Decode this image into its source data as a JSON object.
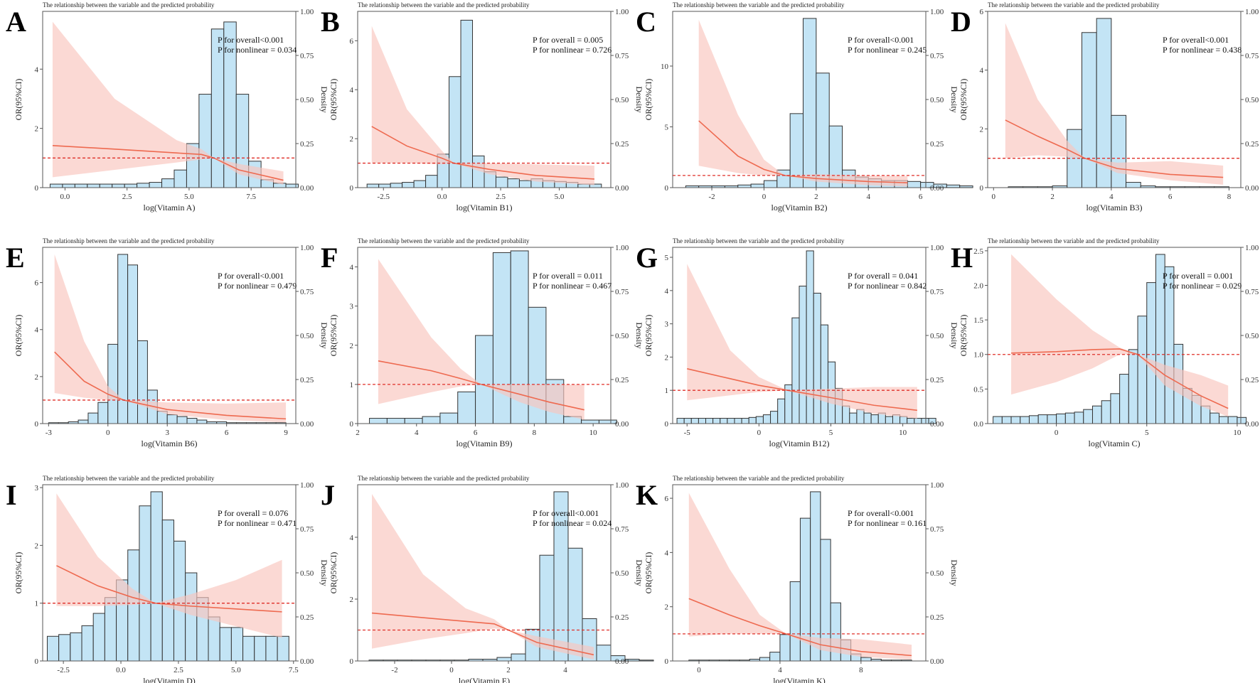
{
  "colors": {
    "bar_fill": "#c3e4f5",
    "bar_stroke": "#333333",
    "curve": "#ee6a50",
    "ci": "#f9c4bd",
    "ref_line": "#e0302a"
  },
  "common": {
    "title": "The relationship between the variable and the predicted probability",
    "ylabel": "OR(95%CI)",
    "y2label": "Density",
    "y2ticks": [
      "0.00",
      "0.25",
      "0.50",
      "0.75",
      "1.00"
    ]
  },
  "chart_data": [
    {
      "type": "line+histogram",
      "label": "A",
      "xlabel": "log(Vitamin A)",
      "xlim": [
        -0.9,
        9.3
      ],
      "xticks": [
        0,
        2.5,
        5,
        7.5
      ],
      "xtick_labels": [
        "0.0",
        "2.5",
        "5.0",
        "7.5"
      ],
      "ylim": [
        0,
        5.95
      ],
      "yticks": [
        0,
        2,
        4
      ],
      "p_overall": "P for overall<0.001",
      "p_nonlinear": "P for nonlinear = 0.034",
      "hist": {
        "start": -0.6,
        "width": 0.5,
        "density": [
          0.02,
          0.02,
          0.02,
          0.02,
          0.02,
          0.02,
          0.02,
          0.025,
          0.03,
          0.05,
          0.1,
          0.25,
          0.53,
          0.9,
          0.94,
          0.53,
          0.15,
          0.045,
          0.025,
          0.02
        ]
      },
      "curve": [
        [
          -0.5,
          1.42,
          0.35,
          5.6
        ],
        [
          2,
          1.3,
          0.6,
          3.0
        ],
        [
          4.5,
          1.17,
          0.85,
          1.6
        ],
        [
          5.5,
          1.12,
          0.95,
          1.3
        ],
        [
          6.0,
          1.0,
          1.0,
          1.0
        ],
        [
          7,
          0.6,
          0.45,
          0.8
        ],
        [
          8.8,
          0.25,
          0.1,
          0.55
        ]
      ]
    },
    {
      "type": "line+histogram",
      "label": "B",
      "xlabel": "log(Vitamin B1)",
      "xlim": [
        -3.6,
        7.2
      ],
      "xticks": [
        -2.5,
        0,
        2.5,
        5
      ],
      "xtick_labels": [
        "-2.5",
        "0.0",
        "2.5",
        "5.0"
      ],
      "ylim": [
        0,
        7.2
      ],
      "yticks": [
        0,
        2,
        4,
        6
      ],
      "p_overall": "P for overall = 0.005",
      "p_nonlinear": "P for nonlinear = 0.726",
      "hist": {
        "start": -3.2,
        "width": 0.5,
        "density": [
          0.02,
          0.02,
          0.025,
          0.03,
          0.04,
          0.07,
          0.19,
          0.63,
          0.95,
          0.18,
          0.09,
          0.06,
          0.05,
          0.04,
          0.05,
          0.04,
          0.035,
          0.03,
          0.02,
          0.02
        ]
      },
      "curve": [
        [
          -3,
          2.5,
          1.0,
          6.6
        ],
        [
          -1.5,
          1.7,
          1.0,
          3.2
        ],
        [
          0,
          1.2,
          0.95,
          1.5
        ],
        [
          0.5,
          1.0,
          1.0,
          1.0
        ],
        [
          2,
          0.75,
          0.55,
          1.0
        ],
        [
          4,
          0.5,
          0.25,
          0.95
        ],
        [
          6.5,
          0.35,
          0.1,
          0.9
        ]
      ]
    },
    {
      "type": "line+histogram",
      "label": "C",
      "xlabel": "log(Vitamin B2)",
      "xlim": [
        -3.5,
        6.2
      ],
      "xticks": [
        -2,
        0,
        2,
        4,
        6
      ],
      "xtick_labels": [
        "-2",
        "0",
        "2",
        "4",
        "6"
      ],
      "ylim": [
        0,
        14.5
      ],
      "yticks": [
        0,
        5,
        10
      ],
      "p_overall": "P for overall<0.001",
      "p_nonlinear": "P for nonlinear = 0.245",
      "hist": {
        "start": -3.0,
        "width": 0.5,
        "density": [
          0.01,
          0.01,
          0.01,
          0.01,
          0.015,
          0.02,
          0.04,
          0.1,
          0.42,
          0.96,
          0.65,
          0.35,
          0.1,
          0.06,
          0.05,
          0.04,
          0.04,
          0.035,
          0.03,
          0.02,
          0.015,
          0.01
        ]
      },
      "curve": [
        [
          -2.5,
          5.5,
          1.8,
          13.8
        ],
        [
          -1,
          2.6,
          1.2,
          6.0
        ],
        [
          0,
          1.5,
          1.0,
          2.3
        ],
        [
          0.8,
          1.0,
          1.0,
          1.0
        ],
        [
          2,
          0.75,
          0.5,
          1.1
        ],
        [
          4,
          0.5,
          0.2,
          1.0
        ],
        [
          5.5,
          0.4,
          0.1,
          0.95
        ]
      ]
    },
    {
      "type": "line+histogram",
      "label": "D",
      "xlabel": "log(Vitamin B3)",
      "xlim": [
        -0.2,
        8.4
      ],
      "xticks": [
        0,
        2,
        4,
        6,
        8
      ],
      "xtick_labels": [
        "0",
        "2",
        "4",
        "6",
        "8"
      ],
      "ylim": [
        0,
        6.0
      ],
      "yticks": [
        0,
        2,
        4,
        6
      ],
      "p_overall": "P for overall<0.001",
      "p_nonlinear": "P for nonlinear = 0.438",
      "hist": {
        "start": 0.5,
        "width": 0.5,
        "density": [
          0.005,
          0.005,
          0.005,
          0.01,
          0.33,
          0.88,
          0.96,
          0.41,
          0.03,
          0.01,
          0.005,
          0.005,
          0.005,
          0.005,
          0.005
        ]
      },
      "curve": [
        [
          0.4,
          2.3,
          1.0,
          5.6
        ],
        [
          1.5,
          1.75,
          1.1,
          3.0
        ],
        [
          2.5,
          1.3,
          1.05,
          1.6
        ],
        [
          3.1,
          1.0,
          1.0,
          1.0
        ],
        [
          4.2,
          0.65,
          0.5,
          0.85
        ],
        [
          6,
          0.45,
          0.25,
          0.9
        ],
        [
          7.8,
          0.35,
          0.1,
          0.75
        ]
      ]
    },
    {
      "type": "line+histogram",
      "label": "E",
      "xlabel": "log(Vitamin B6)",
      "xlim": [
        -3.3,
        9.5
      ],
      "xticks": [
        -3,
        0,
        3,
        6,
        9
      ],
      "xtick_labels": [
        "-3",
        "0",
        "3",
        "6",
        "9"
      ],
      "ylim": [
        0,
        7.5
      ],
      "yticks": [
        0,
        2,
        4,
        6
      ],
      "p_overall": "P for overall<0.001",
      "p_nonlinear": "P for nonlinear = 0.479",
      "hist": {
        "start": -3.0,
        "width": 0.5,
        "density": [
          0.005,
          0.005,
          0.01,
          0.02,
          0.06,
          0.12,
          0.45,
          0.96,
          0.9,
          0.47,
          0.19,
          0.07,
          0.05,
          0.04,
          0.03,
          0.02,
          0.01,
          0.01,
          0.005,
          0.005,
          0.005,
          0.005,
          0.005,
          0.005
        ]
      },
      "curve": [
        [
          -2.7,
          3.05,
          1.3,
          7.2
        ],
        [
          -1.2,
          1.8,
          1.1,
          3.5
        ],
        [
          0,
          1.25,
          1.0,
          1.6
        ],
        [
          0.8,
          1.0,
          1.0,
          1.0
        ],
        [
          3,
          0.6,
          0.4,
          0.9
        ],
        [
          6,
          0.35,
          0.15,
          0.85
        ],
        [
          9,
          0.2,
          0.05,
          0.9
        ]
      ]
    },
    {
      "type": "line+histogram",
      "label": "F",
      "xlabel": "log(Vitamin B9)",
      "xlim": [
        2,
        10.6
      ],
      "xticks": [
        2,
        4,
        6,
        8,
        10
      ],
      "xtick_labels": [
        "2",
        "4",
        "6",
        "8",
        "10"
      ],
      "ylim": [
        0,
        4.5
      ],
      "yticks": [
        0,
        1,
        2,
        3,
        4
      ],
      "p_overall": "P for overall = 0.011",
      "p_nonlinear": "P for nonlinear = 0.467",
      "hist": {
        "start": 2.4,
        "width": 0.6,
        "density": [
          0.03,
          0.03,
          0.03,
          0.04,
          0.06,
          0.18,
          0.5,
          0.97,
          0.98,
          0.66,
          0.25,
          0.04,
          0.02,
          0.02
        ]
      },
      "curve": [
        [
          2.7,
          1.6,
          0.5,
          4.2
        ],
        [
          4.5,
          1.35,
          0.8,
          2.2
        ],
        [
          5.5,
          1.15,
          0.95,
          1.4
        ],
        [
          6.2,
          1.0,
          1.0,
          1.0
        ],
        [
          7.5,
          0.75,
          0.55,
          1.0
        ],
        [
          8.5,
          0.55,
          0.3,
          1.0
        ],
        [
          9.7,
          0.35,
          0.1,
          1.0
        ]
      ]
    },
    {
      "type": "line+histogram",
      "label": "G",
      "xlabel": "log(Vitamin B12)",
      "xlim": [
        -6,
        11.6
      ],
      "xticks": [
        -5,
        0,
        5,
        10
      ],
      "xtick_labels": [
        "-5",
        "0",
        "5",
        "10"
      ],
      "ylim": [
        0,
        5.3
      ],
      "yticks": [
        0,
        1,
        2,
        3,
        4,
        5
      ],
      "p_overall": "P for overall = 0.041",
      "p_nonlinear": "P for nonlinear = 0.842",
      "hist": {
        "start": -5.7,
        "width": 0.5,
        "density": [
          0.03,
          0.03,
          0.03,
          0.03,
          0.03,
          0.03,
          0.03,
          0.03,
          0.03,
          0.03,
          0.035,
          0.04,
          0.05,
          0.07,
          0.14,
          0.22,
          0.6,
          0.78,
          0.98,
          0.74,
          0.56,
          0.35,
          0.2,
          0.1,
          0.06,
          0.08,
          0.06,
          0.05,
          0.06,
          0.04,
          0.05,
          0.04,
          0.03,
          0.03,
          0.03,
          0.03
        ]
      },
      "curve": [
        [
          -5,
          1.65,
          0.7,
          4.8
        ],
        [
          -2,
          1.35,
          0.85,
          2.2
        ],
        [
          0,
          1.15,
          0.95,
          1.4
        ],
        [
          2,
          1.0,
          1.0,
          1.0
        ],
        [
          5,
          0.78,
          0.6,
          1.05
        ],
        [
          8,
          0.55,
          0.3,
          1.1
        ],
        [
          11,
          0.4,
          0.15,
          1.1
        ]
      ]
    },
    {
      "type": "line+histogram",
      "label": "H",
      "xlabel": "log(Vitamin C)",
      "xlim": [
        -3.8,
        10.2
      ],
      "xticks": [
        0,
        5,
        10
      ],
      "xtick_labels": [
        "0",
        "5",
        "10"
      ],
      "ylim": [
        0,
        2.55
      ],
      "yticks": [
        0,
        0.5,
        1,
        1.5,
        2,
        2.5
      ],
      "ytick_labels": [
        "0.0",
        "0.5",
        "1.0",
        "1.5",
        "2.0",
        "2.5"
      ],
      "p_overall": "P for overall = 0.001",
      "p_nonlinear": "P for nonlinear = 0.029",
      "hist": {
        "start": -3.5,
        "width": 0.5,
        "density": [
          0.04,
          0.04,
          0.04,
          0.04,
          0.045,
          0.05,
          0.05,
          0.055,
          0.06,
          0.065,
          0.08,
          0.1,
          0.13,
          0.17,
          0.28,
          0.42,
          0.61,
          0.8,
          0.96,
          0.89,
          0.45,
          0.2,
          0.16,
          0.1,
          0.06,
          0.04,
          0.04,
          0.035
        ]
      },
      "curve": [
        [
          -2.5,
          1.02,
          0.42,
          2.45
        ],
        [
          0,
          1.04,
          0.6,
          1.8
        ],
        [
          2,
          1.07,
          0.8,
          1.35
        ],
        [
          3.5,
          1.08,
          1.0,
          1.1
        ],
        [
          4.5,
          1.0,
          1.0,
          1.0
        ],
        [
          6,
          0.7,
          0.55,
          0.85
        ],
        [
          8,
          0.4,
          0.25,
          0.7
        ],
        [
          9.5,
          0.22,
          0.1,
          0.55
        ]
      ]
    },
    {
      "type": "line+histogram",
      "label": "I",
      "xlabel": "log(Vitamin D)",
      "xlim": [
        -3.4,
        7.6
      ],
      "xticks": [
        -2.5,
        0,
        2.5,
        5,
        7.5
      ],
      "xtick_labels": [
        "-2.5",
        "0.0",
        "2.5",
        "5.0",
        "7.5"
      ],
      "ylim": [
        0,
        3.05
      ],
      "yticks": [
        0,
        1,
        2,
        3
      ],
      "p_overall": "P for overall = 0.076",
      "p_nonlinear": "P for nonlinear = 0.471",
      "hist": {
        "start": -3.2,
        "width": 0.5,
        "density": [
          0.14,
          0.15,
          0.16,
          0.2,
          0.27,
          0.36,
          0.46,
          0.63,
          0.88,
          0.96,
          0.8,
          0.68,
          0.5,
          0.36,
          0.25,
          0.19,
          0.19,
          0.14,
          0.14,
          0.14,
          0.14
        ]
      },
      "curve": [
        [
          -2.8,
          1.65,
          0.95,
          2.9
        ],
        [
          -1,
          1.3,
          0.95,
          1.8
        ],
        [
          0.5,
          1.1,
          0.97,
          1.25
        ],
        [
          1.5,
          1.0,
          1.0,
          1.0
        ],
        [
          3,
          0.95,
          0.8,
          1.15
        ],
        [
          5,
          0.9,
          0.6,
          1.4
        ],
        [
          7,
          0.85,
          0.4,
          1.75
        ]
      ]
    },
    {
      "type": "line+histogram",
      "label": "J",
      "xlabel": "log(Vitamin E)",
      "xlim": [
        -3.3,
        5.6
      ],
      "xticks": [
        -2,
        0,
        2,
        4
      ],
      "xtick_labels": [
        "-2",
        "0",
        "2",
        "4"
      ],
      "ylim": [
        0,
        5.7
      ],
      "yticks": [
        0,
        2,
        4
      ],
      "p_overall": "P for overall<0.001",
      "p_nonlinear": "P for nonlinear = 0.024",
      "hist": {
        "start": -2.9,
        "width": 0.5,
        "density": [
          0.005,
          0.005,
          0.005,
          0.005,
          0.005,
          0.005,
          0.005,
          0.01,
          0.01,
          0.02,
          0.04,
          0.18,
          0.6,
          0.96,
          0.64,
          0.24,
          0.09,
          0.03,
          0.01,
          0.005
        ]
      },
      "curve": [
        [
          -2.8,
          1.55,
          0.4,
          5.4
        ],
        [
          -1,
          1.4,
          0.7,
          2.8
        ],
        [
          0.5,
          1.28,
          0.9,
          1.7
        ],
        [
          1.5,
          1.2,
          1.05,
          1.35
        ],
        [
          2,
          1.0,
          1.0,
          1.0
        ],
        [
          3,
          0.6,
          0.45,
          0.8
        ],
        [
          5,
          0.2,
          0.05,
          0.45
        ]
      ]
    },
    {
      "type": "line+histogram",
      "label": "K",
      "xlabel": "log(Vitamin K)",
      "xlim": [
        -1.3,
        11.2
      ],
      "xticks": [
        0,
        4,
        8
      ],
      "xtick_labels": [
        "0",
        "4",
        "8"
      ],
      "ylim": [
        0,
        6.5
      ],
      "yticks": [
        0,
        2,
        4,
        6
      ],
      "p_overall": "P for overall<0.001",
      "p_nonlinear": "P for nonlinear = 0.161",
      "hist": {
        "start": -0.5,
        "width": 0.5,
        "density": [
          0.005,
          0.005,
          0.005,
          0.005,
          0.005,
          0.005,
          0.01,
          0.02,
          0.05,
          0.15,
          0.45,
          0.81,
          0.96,
          0.69,
          0.33,
          0.12,
          0.04,
          0.02,
          0.01,
          0.005,
          0.005,
          0.005
        ]
      },
      "curve": [
        [
          -0.5,
          2.3,
          0.9,
          6.2
        ],
        [
          1.5,
          1.7,
          1.0,
          3.4
        ],
        [
          3,
          1.3,
          1.0,
          1.7
        ],
        [
          4.3,
          1.0,
          1.0,
          1.0
        ],
        [
          6,
          0.6,
          0.4,
          0.85
        ],
        [
          8,
          0.35,
          0.15,
          0.8
        ],
        [
          10.5,
          0.2,
          0.05,
          0.6
        ]
      ]
    }
  ]
}
